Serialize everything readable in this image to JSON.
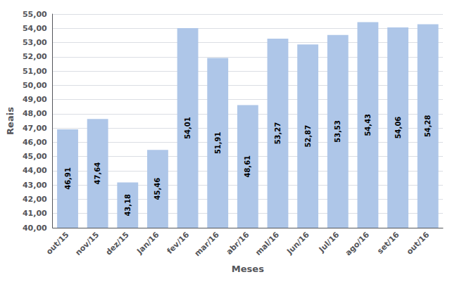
{
  "chart_data": {
    "type": "bar",
    "categories": [
      "out/15",
      "nov/15",
      "dez/15",
      "Jan/16",
      "fev/16",
      "mar/16",
      "abr/16",
      "mal/16",
      "Jun/16",
      "Jul/16",
      "ago/16",
      "set/16",
      "out/16"
    ],
    "values": [
      46.91,
      47.64,
      43.18,
      45.46,
      54.01,
      51.91,
      48.61,
      53.27,
      52.87,
      53.53,
      54.43,
      54.06,
      54.28
    ],
    "value_labels": [
      "46,91",
      "47,64",
      "43,18",
      "45,46",
      "54,01",
      "51,91",
      "48,61",
      "53,27",
      "52,87",
      "53,53",
      "54,43",
      "54,06",
      "54,28"
    ],
    "data_labels": true,
    "color": "#aec6e8",
    "xlabel": "Meses",
    "ylabel": "Reais",
    "ylim": [
      40.0,
      55.0
    ],
    "yticks": [
      {
        "value": 40,
        "label": "40,00"
      },
      {
        "value": 41,
        "label": "41,00"
      },
      {
        "value": 42,
        "label": "42,00"
      },
      {
        "value": 43,
        "label": "43,00"
      },
      {
        "value": 44,
        "label": "44,00"
      },
      {
        "value": 45,
        "label": "45,00"
      },
      {
        "value": 46,
        "label": "46,00"
      },
      {
        "value": 47,
        "label": "47,00"
      },
      {
        "value": 48,
        "label": "48,00"
      },
      {
        "value": 49,
        "label": "49,00"
      },
      {
        "value": 50,
        "label": "50,00"
      },
      {
        "value": 51,
        "label": "51,00"
      },
      {
        "value": 52,
        "label": "52,00"
      },
      {
        "value": 53,
        "label": "53,00"
      },
      {
        "value": 54,
        "label": "54,00"
      },
      {
        "value": 55,
        "label": "55,00"
      }
    ],
    "grid": true
  }
}
